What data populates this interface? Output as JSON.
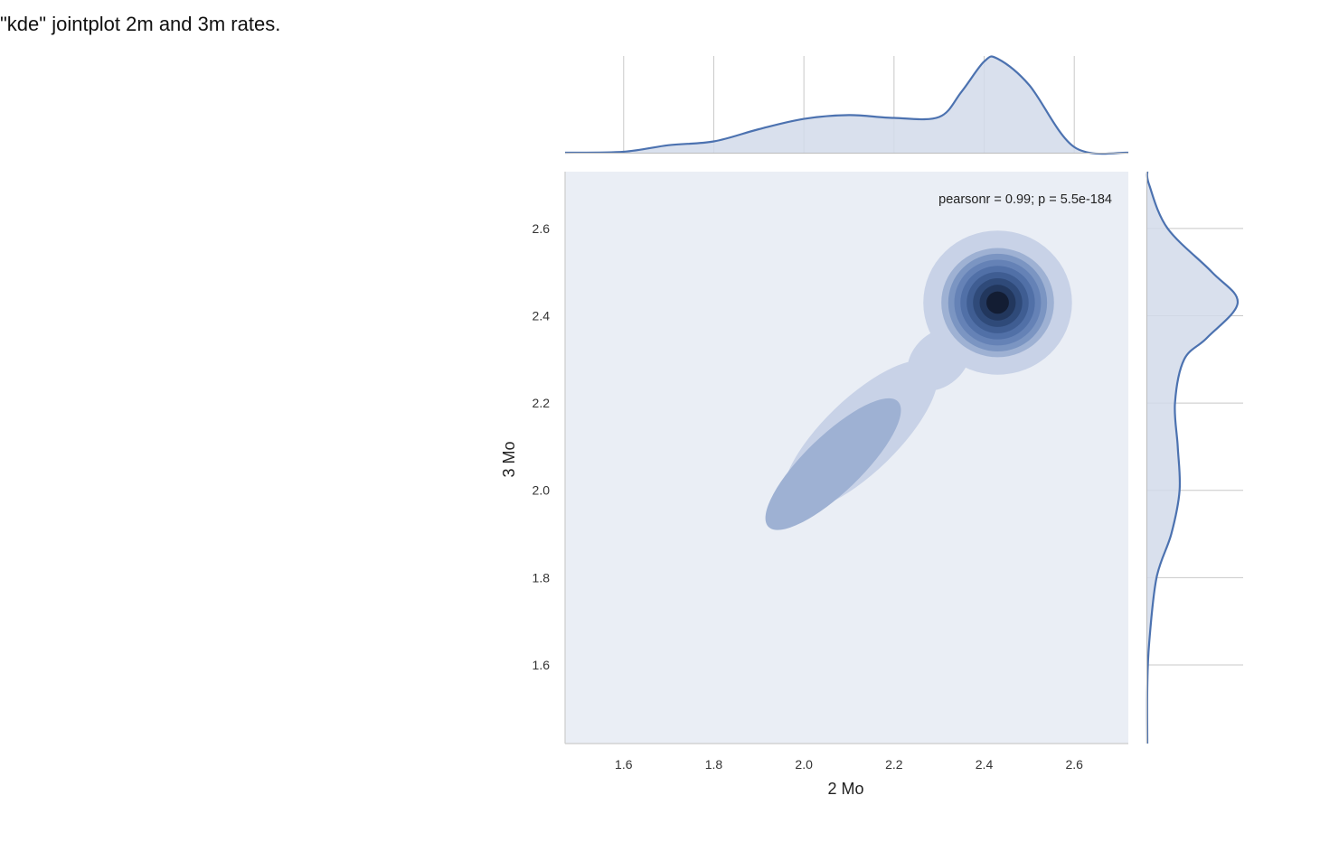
{
  "caption": "\"kde\" jointplot 2m and 3m rates.",
  "chart_data": {
    "type": "kde-jointplot",
    "xlabel": "2 Mo",
    "ylabel": "3 Mo",
    "xlim": [
      1.47,
      2.72
    ],
    "ylim": [
      1.42,
      2.73
    ],
    "xticks": [
      1.6,
      1.8,
      2.0,
      2.2,
      2.4,
      2.6
    ],
    "yticks": [
      1.6,
      1.8,
      2.0,
      2.2,
      2.4,
      2.6
    ],
    "xtick_labels": [
      "1.6",
      "1.8",
      "2.0",
      "2.2",
      "2.4",
      "2.6"
    ],
    "ytick_labels": [
      "1.6",
      "1.8",
      "2.0",
      "2.2",
      "2.4",
      "2.6"
    ],
    "annotation": "pearsonr = 0.99; p = 5.5e-184",
    "grid": true,
    "joint_density": {
      "peak": [
        2.43,
        2.43
      ],
      "secondary_mode": [
        2.05,
        2.05
      ],
      "levels": 9
    },
    "marginal_x": {
      "x": [
        1.47,
        1.6,
        1.7,
        1.8,
        1.9,
        2.0,
        2.1,
        2.2,
        2.3,
        2.35,
        2.4,
        2.43,
        2.5,
        2.6,
        2.72
      ],
      "density": [
        0.0,
        0.01,
        0.08,
        0.12,
        0.25,
        0.36,
        0.4,
        0.37,
        0.38,
        0.65,
        0.97,
        1.0,
        0.72,
        0.06,
        0.0
      ]
    },
    "marginal_y": {
      "y": [
        1.42,
        1.55,
        1.65,
        1.8,
        1.9,
        2.0,
        2.1,
        2.2,
        2.3,
        2.35,
        2.43,
        2.5,
        2.6,
        2.7,
        2.73
      ],
      "density": [
        0.0,
        0.0,
        0.02,
        0.1,
        0.26,
        0.35,
        0.33,
        0.3,
        0.4,
        0.65,
        0.98,
        0.7,
        0.22,
        0.02,
        0.0
      ]
    },
    "colors": {
      "panel": "#eaeef5",
      "line": "#4c72b0",
      "fill": "#d2dbea",
      "grid": "#c8c8c8",
      "contours": [
        "#c8d2e7",
        "#9eb1d3",
        "#7b95c2",
        "#6582b6",
        "#5170a7",
        "#3f5d92",
        "#2f4a79",
        "#22375d",
        "#131d33"
      ]
    }
  }
}
